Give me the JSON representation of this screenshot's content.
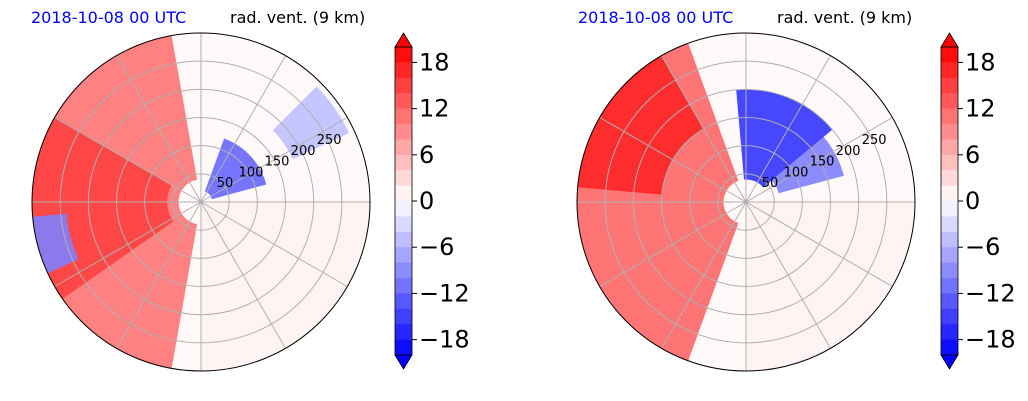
{
  "palette": {
    "min_color": "#0000ff",
    "mid_color": "#ffffff",
    "max_color": "#ff0000",
    "grid_color": "#b0b0b0"
  },
  "chart_data": [
    {
      "type": "heatmap",
      "projection": "polar",
      "title_left": "2018-10-08 00 UTC",
      "title_right": "rad. vent. (9 km)",
      "radial_ticks": [
        50,
        100,
        150,
        200,
        250
      ],
      "radial_range": [
        0,
        300
      ],
      "angular_grid_deg": 30,
      "colorbar": {
        "range": [
          -20,
          20
        ],
        "levels_step": 2,
        "ticks": [
          -18,
          -12,
          -6,
          0,
          6,
          12,
          18
        ],
        "tick_labels": [
          "−18",
          "−12",
          "−6",
          "0",
          "6",
          "12",
          "18"
        ],
        "extend": "both"
      },
      "features": [
        {
          "theta_deg": [
            100,
            260
          ],
          "r": [
            40,
            300
          ],
          "value": 11
        },
        {
          "theta_deg": [
            150,
            215
          ],
          "r": [
            60,
            300
          ],
          "value": 15
        },
        {
          "theta_deg": [
            185,
            205
          ],
          "r": [
            240,
            300
          ],
          "value": -10
        },
        {
          "theta_deg": [
            15,
            70
          ],
          "r": [
            20,
            120
          ],
          "value": -12
        },
        {
          "theta_deg": [
            25,
            45
          ],
          "r": [
            180,
            290
          ],
          "value": -5
        },
        {
          "theta_deg": [
            270,
            360
          ],
          "r": [
            0,
            300
          ],
          "value": 1
        }
      ]
    },
    {
      "type": "heatmap",
      "projection": "polar",
      "title_left": "2018-10-08 00 UTC",
      "title_right": "rad. vent. (9 km)",
      "radial_ticks": [
        50,
        100,
        150,
        200,
        250
      ],
      "radial_range": [
        0,
        300
      ],
      "angular_grid_deg": 30,
      "colorbar": {
        "range": [
          -20,
          20
        ],
        "levels_step": 2,
        "ticks": [
          -18,
          -12,
          -6,
          0,
          6,
          12,
          18
        ],
        "tick_labels": [
          "−18",
          "−12",
          "−6",
          "0",
          "6",
          "12",
          "18"
        ],
        "extend": "both"
      },
      "features": [
        {
          "theta_deg": [
            110,
            250
          ],
          "r": [
            40,
            300
          ],
          "value": 12
        },
        {
          "theta_deg": [
            120,
            175
          ],
          "r": [
            150,
            300
          ],
          "value": 17
        },
        {
          "theta_deg": [
            40,
            95
          ],
          "r": [
            40,
            200
          ],
          "value": -16
        },
        {
          "theta_deg": [
            15,
            40
          ],
          "r": [
            60,
            180
          ],
          "value": -10
        },
        {
          "theta_deg": [
            270,
            360
          ],
          "r": [
            0,
            300
          ],
          "value": 1
        }
      ]
    }
  ]
}
